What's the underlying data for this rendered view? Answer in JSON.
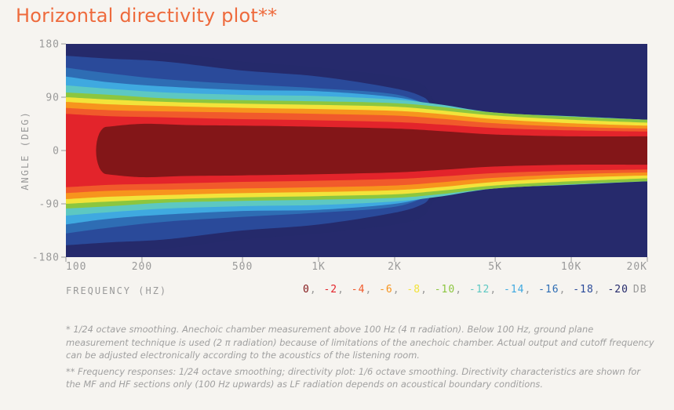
{
  "title": "Horizontal directivity plot**",
  "chart_data": {
    "type": "heatmap",
    "title": "Horizontal directivity plot**",
    "xlabel": "FREQUENCY (HZ)",
    "ylabel": "ANGLE (DEG)",
    "x_scale": "log",
    "xlim": [
      100,
      20000
    ],
    "ylim": [
      -180,
      180
    ],
    "x_ticks": [
      {
        "value": 100,
        "label": "100"
      },
      {
        "value": 200,
        "label": "200"
      },
      {
        "value": 500,
        "label": "500"
      },
      {
        "value": 1000,
        "label": "1K"
      },
      {
        "value": 2000,
        "label": "2K"
      },
      {
        "value": 5000,
        "label": "5K"
      },
      {
        "value": 10000,
        "label": "10K"
      },
      {
        "value": 20000,
        "label": "20K"
      }
    ],
    "y_ticks": [
      {
        "value": 180,
        "label": "180"
      },
      {
        "value": 90,
        "label": "90"
      },
      {
        "value": 0,
        "label": "0"
      },
      {
        "value": -90,
        "label": "-90"
      },
      {
        "value": -180,
        "label": "-180"
      }
    ],
    "legend_unit": "DB",
    "levels": [
      {
        "label": "0",
        "color": "#831618"
      },
      {
        "label": "-2",
        "color": "#e3242b"
      },
      {
        "label": "-4",
        "color": "#f15a2b"
      },
      {
        "label": "-6",
        "color": "#f7941d"
      },
      {
        "label": "-8",
        "color": "#f2e33a"
      },
      {
        "label": "-10",
        "color": "#8cc63f"
      },
      {
        "label": "-12",
        "color": "#5dc8c2"
      },
      {
        "label": "-14",
        "color": "#3fa9e0"
      },
      {
        "label": "-16",
        "color": "#2e6db4"
      },
      {
        "label": "-18",
        "color": "#2a4a9a"
      },
      {
        "label": "-20",
        "color": "#252a6b"
      }
    ],
    "contours_deg": [
      {
        "level": "-20",
        "x": [
          100,
          150,
          250,
          500,
          1000,
          2000,
          2600,
          3000,
          5000,
          10000,
          20000
        ],
        "y": [
          170,
          170,
          165,
          150,
          140,
          125,
          110,
          80,
          60,
          55,
          55
        ]
      },
      {
        "level": "-18",
        "x": [
          100,
          150,
          250,
          500,
          1000,
          2000,
          2600,
          3000,
          5000,
          10000,
          20000
        ],
        "y": [
          160,
          155,
          150,
          135,
          125,
          105,
          90,
          70,
          57,
          52,
          52
        ]
      },
      {
        "level": "-16",
        "x": [
          100,
          150,
          250,
          500,
          1000,
          2000,
          3000,
          5000,
          10000,
          20000
        ],
        "y": [
          140,
          130,
          120,
          112,
          105,
          95,
          72,
          58,
          52,
          52
        ]
      },
      {
        "level": "-14",
        "x": [
          100,
          150,
          250,
          500,
          1000,
          2000,
          3000,
          5000,
          10000,
          20000
        ],
        "y": [
          125,
          115,
          108,
          102,
          100,
          90,
          75,
          60,
          55,
          52
        ]
      },
      {
        "level": "-12",
        "x": [
          100,
          150,
          250,
          500,
          1000,
          2000,
          3000,
          5000,
          10000,
          20000
        ],
        "y": [
          110,
          104,
          98,
          94,
          92,
          86,
          78,
          64,
          58,
          52
        ]
      },
      {
        "level": "-10",
        "x": [
          100,
          150,
          250,
          500,
          1000,
          2000,
          3000,
          5000,
          10000,
          20000
        ],
        "y": [
          98,
          94,
          88,
          85,
          83,
          80,
          74,
          64,
          57,
          52
        ]
      },
      {
        "level": "-8",
        "x": [
          100,
          150,
          250,
          500,
          1000,
          2000,
          3000,
          5000,
          10000,
          20000
        ],
        "y": [
          90,
          86,
          82,
          79,
          77,
          74,
          68,
          59,
          52,
          47
        ]
      },
      {
        "level": "-6",
        "x": [
          100,
          150,
          250,
          500,
          1000,
          2000,
          3000,
          5000,
          10000,
          20000
        ],
        "y": [
          82,
          78,
          75,
          72,
          70,
          67,
          62,
          53,
          46,
          42
        ]
      },
      {
        "level": "-4",
        "x": [
          100,
          150,
          250,
          500,
          1000,
          2000,
          3000,
          5000,
          10000,
          20000
        ],
        "y": [
          72,
          68,
          66,
          64,
          62,
          59,
          54,
          46,
          40,
          37
        ]
      },
      {
        "level": "-2",
        "x": [
          100,
          150,
          250,
          500,
          1000,
          2000,
          3000,
          5000,
          10000,
          20000
        ],
        "y": [
          62,
          58,
          56,
          53,
          51,
          48,
          44,
          38,
          34,
          32
        ]
      },
      {
        "level": "0",
        "x": [
          145,
          200,
          300,
          500,
          1000,
          2000,
          3000,
          5000,
          10000,
          20000
        ],
        "y": [
          40,
          45,
          43,
          42,
          40,
          37,
          33,
          27,
          24,
          24
        ]
      }
    ]
  },
  "notes": [
    "* 1/24 octave smoothing. Anechoic chamber measurement above 100 Hz (4 π radiation). Below 100 Hz, ground plane measurement technique is used (2 π radiation) because of limitations of the anechoic chamber. Actual output and cutoff frequency can be adjusted electronically according to the acoustics of the listening room.",
    "** Frequency responses: 1/24 octave smoothing; directivity plot: 1/6 octave smoothing. Directivity characteristics are shown for the MF and HF sections only (100 Hz upwards) as LF radiation depends on acoustical boundary conditions."
  ]
}
